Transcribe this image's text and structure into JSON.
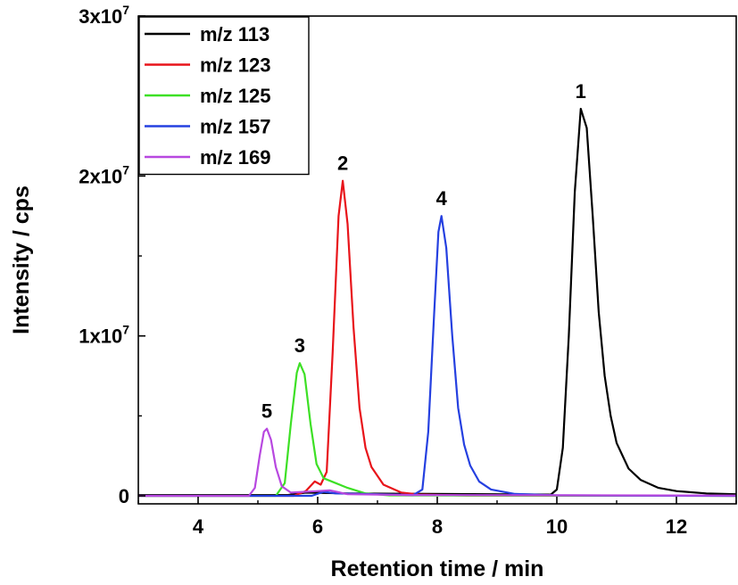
{
  "chart_data": {
    "type": "line",
    "title": "",
    "xlabel": "Retention time / min",
    "ylabel": "Intensity / cps",
    "xlim": [
      3,
      13
    ],
    "ylim": [
      -500000,
      30000000
    ],
    "x_ticks": [
      {
        "value": 4,
        "label": "4"
      },
      {
        "value": 6,
        "label": "6"
      },
      {
        "value": 8,
        "label": "8"
      },
      {
        "value": 10,
        "label": "10"
      },
      {
        "value": 12,
        "label": "12"
      }
    ],
    "y_ticks": [
      {
        "value": 0,
        "label": "0"
      },
      {
        "value": 10000000,
        "label": "1x10",
        "exp": "7"
      },
      {
        "value": 20000000,
        "label": "2x10",
        "exp": "7"
      },
      {
        "value": 30000000,
        "label": "3x10",
        "exp": "7"
      }
    ],
    "legend": "top-left",
    "grid": false,
    "series": [
      {
        "name": "m/z 113",
        "color": "#000000",
        "points": [
          [
            3.0,
            50000
          ],
          [
            5.5,
            50000
          ],
          [
            5.8,
            200000
          ],
          [
            6.5,
            150000
          ],
          [
            9.9,
            80000
          ],
          [
            10.0,
            400000
          ],
          [
            10.1,
            3000000
          ],
          [
            10.2,
            10000000
          ],
          [
            10.3,
            19000000
          ],
          [
            10.4,
            24200000
          ],
          [
            10.5,
            23000000
          ],
          [
            10.6,
            17500000
          ],
          [
            10.7,
            11500000
          ],
          [
            10.8,
            7500000
          ],
          [
            10.9,
            5000000
          ],
          [
            11.0,
            3300000
          ],
          [
            11.2,
            1700000
          ],
          [
            11.4,
            1000000
          ],
          [
            11.7,
            500000
          ],
          [
            12.0,
            300000
          ],
          [
            12.5,
            150000
          ],
          [
            13.0,
            100000
          ]
        ]
      },
      {
        "name": "m/z 123",
        "color": "#e8141a",
        "points": [
          [
            3.0,
            0
          ],
          [
            5.6,
            0
          ],
          [
            5.8,
            300000
          ],
          [
            5.95,
            900000
          ],
          [
            6.05,
            700000
          ],
          [
            6.15,
            1500000
          ],
          [
            6.25,
            9000000
          ],
          [
            6.35,
            17500000
          ],
          [
            6.42,
            19700000
          ],
          [
            6.5,
            17000000
          ],
          [
            6.6,
            10500000
          ],
          [
            6.7,
            5500000
          ],
          [
            6.8,
            3000000
          ],
          [
            6.9,
            1800000
          ],
          [
            7.1,
            700000
          ],
          [
            7.4,
            200000
          ],
          [
            7.7,
            80000
          ],
          [
            8.5,
            20000
          ],
          [
            13.0,
            0
          ]
        ]
      },
      {
        "name": "m/z 125",
        "color": "#3de025",
        "points": [
          [
            3.0,
            0
          ],
          [
            5.3,
            0
          ],
          [
            5.45,
            800000
          ],
          [
            5.55,
            4500000
          ],
          [
            5.65,
            7700000
          ],
          [
            5.7,
            8300000
          ],
          [
            5.78,
            7600000
          ],
          [
            5.88,
            4500000
          ],
          [
            5.98,
            2000000
          ],
          [
            6.1,
            1100000
          ],
          [
            6.3,
            800000
          ],
          [
            6.5,
            500000
          ],
          [
            6.8,
            150000
          ],
          [
            7.2,
            30000
          ],
          [
            13.0,
            0
          ]
        ]
      },
      {
        "name": "m/z 157",
        "color": "#2540e0",
        "points": [
          [
            3.0,
            0
          ],
          [
            5.9,
            0
          ],
          [
            6.1,
            250000
          ],
          [
            6.3,
            150000
          ],
          [
            7.6,
            50000
          ],
          [
            7.75,
            400000
          ],
          [
            7.85,
            4000000
          ],
          [
            7.95,
            11500000
          ],
          [
            8.02,
            16500000
          ],
          [
            8.07,
            17500000
          ],
          [
            8.15,
            15500000
          ],
          [
            8.25,
            10000000
          ],
          [
            8.35,
            5500000
          ],
          [
            8.45,
            3200000
          ],
          [
            8.55,
            1900000
          ],
          [
            8.7,
            900000
          ],
          [
            8.9,
            400000
          ],
          [
            9.3,
            120000
          ],
          [
            10.0,
            30000
          ],
          [
            13.0,
            0
          ]
        ]
      },
      {
        "name": "m/z 169",
        "color": "#b848e0",
        "points": [
          [
            3.0,
            0
          ],
          [
            4.85,
            0
          ],
          [
            4.95,
            500000
          ],
          [
            5.03,
            2500000
          ],
          [
            5.1,
            4000000
          ],
          [
            5.15,
            4200000
          ],
          [
            5.22,
            3500000
          ],
          [
            5.3,
            1800000
          ],
          [
            5.4,
            600000
          ],
          [
            5.55,
            200000
          ],
          [
            6.0,
            300000
          ],
          [
            6.2,
            350000
          ],
          [
            6.5,
            100000
          ],
          [
            7.5,
            50000
          ],
          [
            13.0,
            20000
          ]
        ]
      }
    ],
    "annotations": [
      {
        "text": "1",
        "x": 10.4,
        "y": 24200000
      },
      {
        "text": "2",
        "x": 6.42,
        "y": 19700000
      },
      {
        "text": "3",
        "x": 5.7,
        "y": 8300000
      },
      {
        "text": "4",
        "x": 8.07,
        "y": 17500000
      },
      {
        "text": "5",
        "x": 5.15,
        "y": 4200000
      }
    ]
  }
}
